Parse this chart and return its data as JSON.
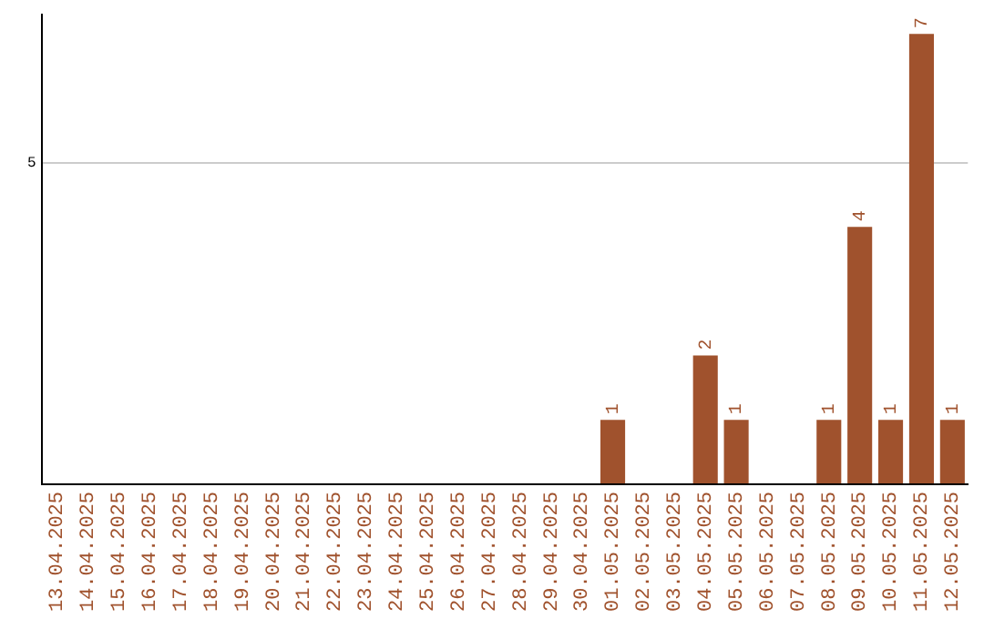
{
  "chart_data": {
    "type": "bar",
    "categories": [
      "13.04.2025",
      "14.04.2025",
      "15.04.2025",
      "16.04.2025",
      "17.04.2025",
      "18.04.2025",
      "19.04.2025",
      "20.04.2025",
      "21.04.2025",
      "22.04.2025",
      "23.04.2025",
      "24.04.2025",
      "25.04.2025",
      "26.04.2025",
      "27.04.2025",
      "28.04.2025",
      "29.04.2025",
      "30.04.2025",
      "01.05.2025",
      "02.05.2025",
      "03.05.2025",
      "04.05.2025",
      "05.05.2025",
      "06.05.2025",
      "07.05.2025",
      "08.05.2025",
      "09.05.2025",
      "10.05.2025",
      "11.05.2025",
      "12.05.2025"
    ],
    "values": [
      null,
      null,
      null,
      null,
      null,
      null,
      null,
      null,
      null,
      null,
      null,
      null,
      null,
      null,
      null,
      null,
      null,
      null,
      1,
      null,
      null,
      2,
      1,
      null,
      null,
      1,
      4,
      1,
      7,
      1
    ],
    "color": "#a0522d",
    "ylim": [
      0,
      7.3
    ],
    "yticks": [
      {
        "value": 0,
        "label": null
      },
      5
    ],
    "grid": "y",
    "data_labels": true,
    "legend": false
  }
}
